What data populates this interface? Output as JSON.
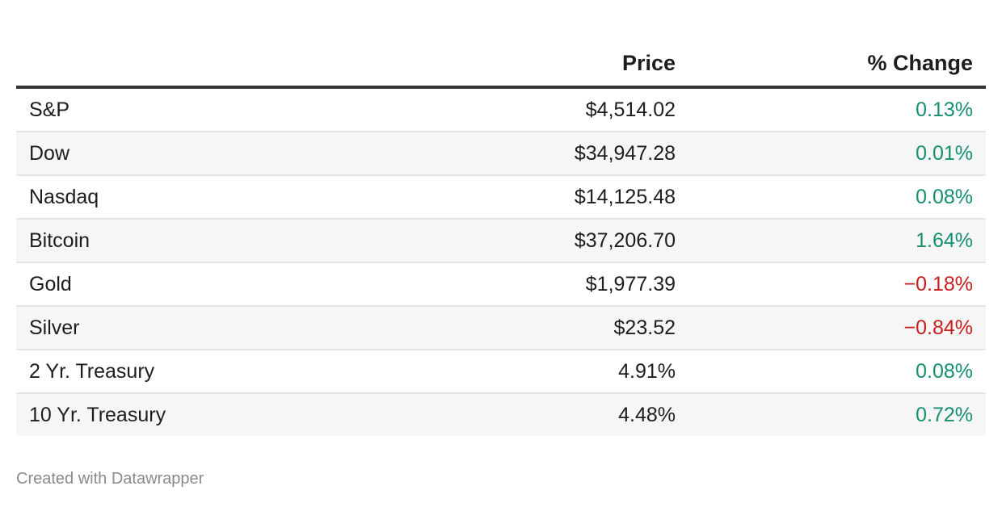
{
  "chart_data": {
    "type": "table",
    "columns": [
      "",
      "Price",
      "% Change"
    ],
    "rows": [
      {
        "name": "S&P",
        "price": "$4,514.02",
        "change": "0.13%",
        "change_value": 0.13
      },
      {
        "name": "Dow",
        "price": "$34,947.28",
        "change": "0.01%",
        "change_value": 0.01
      },
      {
        "name": "Nasdaq",
        "price": "$14,125.48",
        "change": "0.08%",
        "change_value": 0.08
      },
      {
        "name": "Bitcoin",
        "price": "$37,206.70",
        "change": "1.64%",
        "change_value": 1.64
      },
      {
        "name": "Gold",
        "price": "$1,977.39",
        "change": "−0.18%",
        "change_value": -0.18
      },
      {
        "name": "Silver",
        "price": "$23.52",
        "change": "−0.84%",
        "change_value": -0.84
      },
      {
        "name": "2 Yr. Treasury",
        "price": "4.91%",
        "change": "0.08%",
        "change_value": 0.08
      },
      {
        "name": "10 Yr. Treasury",
        "price": "4.48%",
        "change": "0.72%",
        "change_value": 0.72
      }
    ]
  },
  "colors": {
    "positive": "#15906f",
    "negative": "#c71e1d"
  },
  "footer": "Created with Datawrapper"
}
